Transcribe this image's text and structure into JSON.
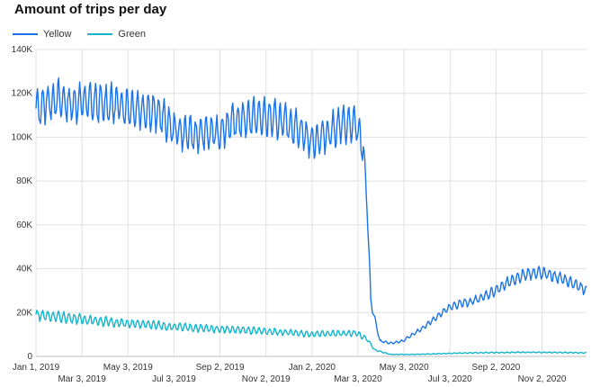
{
  "chart_data": {
    "type": "line",
    "title": "Amount of trips per day",
    "ylim": [
      0,
      140000
    ],
    "y_ticks": [
      "0",
      "20K",
      "40K",
      "60K",
      "80K",
      "100K",
      "120K",
      "140K"
    ],
    "y_tick_values": [
      0,
      20000,
      40000,
      60000,
      80000,
      100000,
      120000,
      140000
    ],
    "x_ticks": [
      {
        "label": "Jan 1, 2019",
        "date": "2019-01-01",
        "row": 0
      },
      {
        "label": "Mar 3, 2019",
        "date": "2019-03-03",
        "row": 1
      },
      {
        "label": "May 3, 2019",
        "date": "2019-05-03",
        "row": 0
      },
      {
        "label": "Jul 3, 2019",
        "date": "2019-07-03",
        "row": 1
      },
      {
        "label": "Sep 2, 2019",
        "date": "2019-09-02",
        "row": 0
      },
      {
        "label": "Nov 2, 2019",
        "date": "2019-11-02",
        "row": 1
      },
      {
        "label": "Jan 2, 2020",
        "date": "2020-01-02",
        "row": 0
      },
      {
        "label": "Mar 3, 2020",
        "date": "2020-03-03",
        "row": 1
      },
      {
        "label": "May 3, 2020",
        "date": "2020-05-03",
        "row": 0
      },
      {
        "label": "Jul 3, 2020",
        "date": "2020-07-03",
        "row": 1
      },
      {
        "label": "Sep 2, 2020",
        "date": "2020-09-02",
        "row": 0
      },
      {
        "label": "Nov 2, 2020",
        "date": "2020-11-02",
        "row": 1
      }
    ],
    "grid": true,
    "legend_position": "top-left",
    "series": [
      {
        "name": "Yellow",
        "color": "#1a73e8",
        "x": [
          "2019-01-01",
          "2019-01-15",
          "2019-02-01",
          "2019-02-15",
          "2019-03-01",
          "2019-03-15",
          "2019-04-01",
          "2019-04-15",
          "2019-05-01",
          "2019-05-15",
          "2019-06-01",
          "2019-06-15",
          "2019-07-01",
          "2019-07-15",
          "2019-08-01",
          "2019-08-15",
          "2019-09-01",
          "2019-09-15",
          "2019-10-01",
          "2019-10-15",
          "2019-11-01",
          "2019-11-15",
          "2019-12-01",
          "2019-12-15",
          "2020-01-01",
          "2020-01-15",
          "2020-02-01",
          "2020-02-15",
          "2020-03-01",
          "2020-03-10",
          "2020-03-15",
          "2020-03-20",
          "2020-04-01",
          "2020-04-15",
          "2020-05-01",
          "2020-05-15",
          "2020-06-01",
          "2020-06-15",
          "2020-07-01",
          "2020-07-15",
          "2020-08-01",
          "2020-08-15",
          "2020-09-01",
          "2020-09-15",
          "2020-10-01",
          "2020-10-15",
          "2020-11-01",
          "2020-11-15",
          "2020-12-01",
          "2020-12-15",
          "2020-12-31"
        ],
        "values": [
          112000,
          116000,
          117000,
          115000,
          116000,
          116000,
          115000,
          115000,
          114000,
          113000,
          112000,
          110000,
          104000,
          102000,
          101000,
          102000,
          102000,
          106000,
          108000,
          109000,
          109000,
          108000,
          106000,
          104000,
          98000,
          100000,
          104000,
          106000,
          105000,
          95000,
          70000,
          25000,
          7000,
          6000,
          7000,
          10000,
          14000,
          18000,
          22000,
          24000,
          25000,
          27000,
          30000,
          33000,
          36000,
          38000,
          38000,
          37000,
          35000,
          33000,
          30000
        ]
      },
      {
        "name": "Green",
        "color": "#12b5cb",
        "x": [
          "2019-01-01",
          "2019-02-01",
          "2019-03-01",
          "2019-04-01",
          "2019-05-01",
          "2019-06-01",
          "2019-07-01",
          "2019-08-01",
          "2019-09-01",
          "2019-10-01",
          "2019-11-01",
          "2019-12-01",
          "2020-01-01",
          "2020-02-01",
          "2020-03-01",
          "2020-03-15",
          "2020-03-25",
          "2020-04-15",
          "2020-05-15",
          "2020-06-15",
          "2020-07-15",
          "2020-08-15",
          "2020-09-15",
          "2020-10-15",
          "2020-11-15",
          "2020-12-15",
          "2020-12-31"
        ],
        "values": [
          19000,
          18000,
          17000,
          16000,
          15000,
          14500,
          13500,
          13000,
          12500,
          12000,
          11500,
          11000,
          10000,
          10500,
          10500,
          8000,
          3000,
          900,
          900,
          1200,
          1500,
          1700,
          1800,
          1900,
          1800,
          1700,
          1600
        ]
      }
    ]
  }
}
